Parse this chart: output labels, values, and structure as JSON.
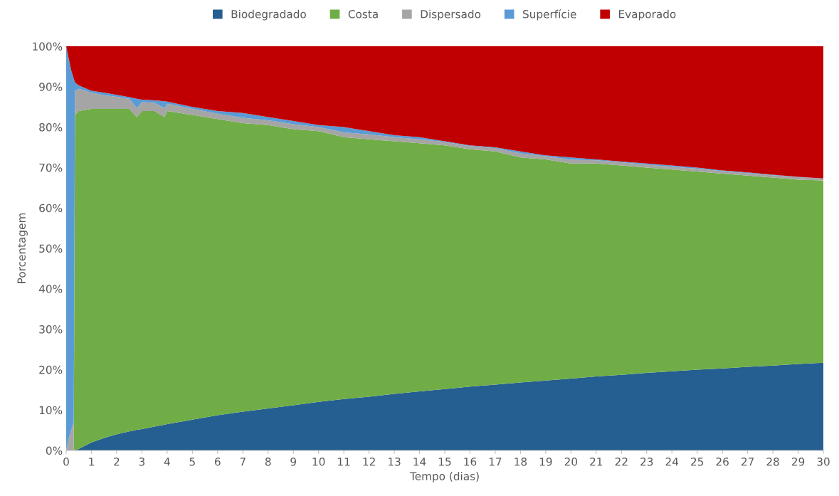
{
  "chart_data": {
    "type": "area",
    "stacked": true,
    "xlabel": "Tempo (dias)",
    "ylabel": "Porcentagem",
    "legend": "top",
    "grid": false,
    "x": [
      0,
      0.1,
      0.2,
      0.3,
      0.35,
      0.5,
      1,
      1.5,
      2,
      2.5,
      2.8,
      3,
      3.5,
      3.9,
      4,
      5,
      6,
      7,
      8,
      9,
      10,
      11,
      12,
      13,
      14,
      15,
      16,
      17,
      18,
      19,
      20,
      21,
      22,
      23,
      24,
      25,
      26,
      27,
      28,
      29,
      30
    ],
    "xlim": [
      0,
      30
    ],
    "xticks": [
      0,
      1,
      2,
      3,
      4,
      5,
      6,
      7,
      8,
      9,
      10,
      11,
      12,
      13,
      14,
      15,
      16,
      17,
      18,
      19,
      20,
      21,
      22,
      23,
      24,
      25,
      26,
      27,
      28,
      29,
      30
    ],
    "ylim": [
      0,
      100
    ],
    "yticks": [
      {
        "value": 0,
        "label": "0%"
      },
      {
        "value": 10,
        "label": "10%"
      },
      {
        "value": 20,
        "label": "20%"
      },
      {
        "value": 30,
        "label": "30%"
      },
      {
        "value": 40,
        "label": "40%"
      },
      {
        "value": 50,
        "label": "50%"
      },
      {
        "value": 60,
        "label": "60%"
      },
      {
        "value": 70,
        "label": "70%"
      },
      {
        "value": 80,
        "label": "80%"
      },
      {
        "value": 90,
        "label": "90%"
      },
      {
        "value": 100,
        "label": "100%"
      }
    ],
    "series": [
      {
        "name": "Biodegradado",
        "color": "#255e91",
        "values": [
          0,
          0,
          0,
          0,
          0,
          0.4,
          2,
          3.1,
          4,
          4.7,
          5.1,
          5.3,
          5.9,
          6.4,
          6.5,
          7.6,
          8.7,
          9.6,
          10.4,
          11.2,
          12,
          12.7,
          13.3,
          14,
          14.6,
          15.2,
          15.8,
          16.3,
          16.8,
          17.3,
          17.8,
          18.3,
          18.7,
          19.2,
          19.6,
          20,
          20.3,
          20.7,
          21,
          21.4,
          21.7
        ]
      },
      {
        "name": "Costa",
        "color": "#70ad47",
        "values": [
          0,
          0,
          0,
          0,
          83,
          83.6,
          82.5,
          81.4,
          80.5,
          79.8,
          77.4,
          78.7,
          78.1,
          76.1,
          77.5,
          75.4,
          73.3,
          71.4,
          70.1,
          68.3,
          67,
          64.8,
          63.7,
          62.5,
          61.4,
          60.3,
          58.7,
          57.7,
          55.7,
          54.7,
          53.2,
          52.7,
          51.8,
          50.8,
          49.9,
          49,
          48.2,
          47.3,
          46.5,
          45.6,
          45.1
        ]
      },
      {
        "name": "Dispersado",
        "color": "#a5a5a5",
        "values": [
          0,
          3,
          5,
          7,
          6,
          5.5,
          4,
          3.4,
          3,
          2.5,
          2.2,
          2.2,
          2,
          2.2,
          1.8,
          1.5,
          1.3,
          1.3,
          1.2,
          1.2,
          1,
          1.2,
          1.2,
          1,
          1,
          0.8,
          0.8,
          0.8,
          1,
          0.8,
          0.9,
          0.8,
          0.8,
          0.7,
          0.7,
          0.7,
          0.6,
          0.6,
          0.6,
          0.6,
          0.5
        ]
      },
      {
        "name": "Superfície",
        "color": "#5b9bd5",
        "values": [
          100,
          94,
          89,
          85,
          2,
          0.8,
          0.5,
          0.6,
          0.5,
          0.4,
          2.3,
          0.6,
          0.6,
          1.7,
          0.5,
          0.5,
          0.7,
          1.2,
          0.8,
          0.8,
          0.5,
          1.3,
          0.8,
          0.5,
          0.5,
          0.2,
          0.2,
          0.2,
          0.5,
          0.2,
          0.6,
          0.2,
          0.2,
          0.3,
          0.3,
          0.3,
          0.2,
          0.2,
          0.1,
          0.1,
          0
        ]
      },
      {
        "name": "Evaporado",
        "color": "#c00000",
        "values": [
          0,
          3,
          6,
          8,
          9,
          9.7,
          11,
          11.5,
          12,
          12.6,
          13,
          13.2,
          13.4,
          13.6,
          13.7,
          15,
          16,
          16.5,
          17.5,
          18.5,
          19.5,
          20,
          21,
          22,
          22.5,
          23.5,
          24.5,
          25,
          26,
          27,
          27.5,
          28,
          28.5,
          29,
          29.5,
          30,
          30.7,
          31.2,
          31.8,
          32.3,
          32.7
        ]
      }
    ]
  }
}
